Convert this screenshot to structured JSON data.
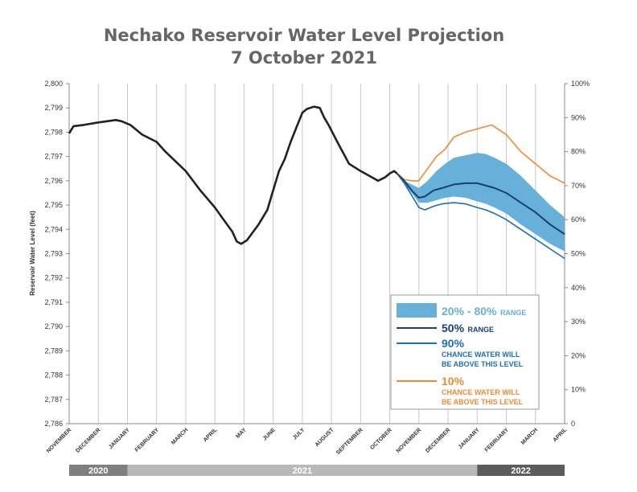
{
  "colors": {
    "history": "#222222",
    "p50": "#1d3f6e",
    "p90": "#1c6fb5",
    "p10": "#ec8b32",
    "band": "#66b0d9",
    "grid": "#c8c8c8",
    "title": "#666666",
    "year_dark": "#7f7f7f",
    "year_light": "#b9b9b9",
    "year_2022": "#5c5c5c"
  },
  "chart_data": {
    "type": "line",
    "title_line1": "Nechako Reservoir Water Level Projection",
    "title_line2": "7 October 2021",
    "ylabel": "Reservoir Water Level (feet)",
    "ylim": [
      2786,
      2800
    ],
    "y_ticks": [
      "2,786",
      "2,787",
      "2,788",
      "2,789",
      "2,790",
      "2,791",
      "2,792",
      "2,793",
      "2,794",
      "2,795",
      "2,796",
      "2,797",
      "2,798",
      "2,799",
      "2,800"
    ],
    "y2_ticks": [
      "0",
      "10%",
      "20%",
      "30%",
      "40%",
      "50%",
      "60%",
      "70%",
      "80%",
      "90%",
      "100%"
    ],
    "x_months": [
      "NOVEMBER",
      "DECEMBER",
      "JANUARY",
      "FEBRUARY",
      "MARCH",
      "APRIL",
      "MAY",
      "JUNE",
      "JULY",
      "AUGUST",
      "SEPTEMBER",
      "OCTOBER",
      "NOVEMBER",
      "DECEMBER",
      "JANUARY",
      "FEBRUARY",
      "MARCH",
      "APRIL"
    ],
    "years": [
      {
        "label": "2020",
        "from": 0,
        "to": 2,
        "shade": "year_dark"
      },
      {
        "label": "2021",
        "from": 2,
        "to": 14,
        "shade": "year_light"
      },
      {
        "label": "2022",
        "from": 14,
        "to": 17,
        "shade": "year_2022"
      }
    ],
    "x_unit": "months since November 2020",
    "history": {
      "x": [
        0.0,
        0.15,
        0.5,
        1.0,
        1.3,
        1.6,
        1.8,
        2.1,
        2.5,
        3.0,
        3.3,
        4.0,
        4.5,
        5.0,
        5.3,
        5.6,
        5.75,
        5.9,
        6.1,
        6.5,
        6.8,
        7.0,
        7.2,
        7.4,
        7.6,
        7.8,
        8.0,
        8.15,
        8.4,
        8.6,
        8.75,
        8.9,
        9.2,
        9.6,
        10.0,
        10.3,
        10.6,
        10.85,
        11.0,
        11.15,
        11.25
      ],
      "y": [
        2797.95,
        2798.25,
        2798.3,
        2798.4,
        2798.45,
        2798.5,
        2798.45,
        2798.3,
        2797.9,
        2797.6,
        2797.2,
        2796.4,
        2795.6,
        2794.9,
        2794.4,
        2793.9,
        2793.5,
        2793.4,
        2793.55,
        2794.2,
        2794.8,
        2795.6,
        2796.4,
        2796.9,
        2797.6,
        2798.2,
        2798.8,
        2798.95,
        2799.05,
        2799.0,
        2798.6,
        2798.3,
        2797.6,
        2796.7,
        2796.4,
        2796.2,
        2796.0,
        2796.15,
        2796.3,
        2796.4,
        2796.3
      ]
    },
    "p50": {
      "x": [
        11.25,
        11.5,
        11.75,
        12.0,
        12.2,
        12.5,
        12.8,
        13.2,
        13.6,
        14.0,
        14.3,
        14.6,
        15.0,
        15.5,
        16.0,
        16.5,
        17.0
      ],
      "y": [
        2796.3,
        2796.0,
        2795.6,
        2795.3,
        2795.35,
        2795.6,
        2795.7,
        2795.85,
        2795.9,
        2795.9,
        2795.8,
        2795.7,
        2795.5,
        2795.1,
        2794.7,
        2794.2,
        2793.8
      ]
    },
    "p90": {
      "x": [
        11.25,
        11.5,
        11.75,
        12.0,
        12.2,
        12.5,
        12.8,
        13.2,
        13.6,
        14.0,
        14.3,
        14.6,
        15.0,
        15.5,
        16.0,
        16.5,
        17.0
      ],
      "y": [
        2796.3,
        2795.9,
        2795.4,
        2794.9,
        2794.8,
        2794.95,
        2795.05,
        2795.1,
        2795.05,
        2794.9,
        2794.8,
        2794.65,
        2794.4,
        2794.0,
        2793.6,
        2793.2,
        2792.8
      ]
    },
    "p10": {
      "x": [
        11.25,
        11.5,
        11.75,
        12.0,
        12.3,
        12.6,
        12.9,
        13.2,
        13.6,
        13.9,
        14.2,
        14.5,
        15.0,
        15.5,
        16.0,
        16.5,
        17.0
      ],
      "y": [
        2796.3,
        2796.05,
        2796.0,
        2796.0,
        2796.5,
        2797.0,
        2797.3,
        2797.8,
        2798.0,
        2798.1,
        2798.2,
        2798.3,
        2797.9,
        2797.2,
        2796.7,
        2796.2,
        2795.9
      ]
    },
    "band_upper": {
      "x": [
        11.25,
        11.5,
        11.75,
        12.0,
        12.3,
        12.6,
        12.9,
        13.2,
        13.6,
        14.0,
        14.3,
        14.6,
        15.0,
        15.5,
        16.0,
        16.5,
        17.0
      ],
      "y": [
        2796.3,
        2796.0,
        2795.85,
        2795.7,
        2796.0,
        2796.4,
        2796.7,
        2796.95,
        2797.05,
        2797.15,
        2797.1,
        2796.95,
        2796.7,
        2796.2,
        2795.6,
        2795.0,
        2794.5
      ]
    },
    "band_lower": {
      "x": [
        11.25,
        11.5,
        11.75,
        12.0,
        12.3,
        12.6,
        12.9,
        13.2,
        13.6,
        14.0,
        14.3,
        14.6,
        15.0,
        15.5,
        16.0,
        16.5,
        17.0
      ],
      "y": [
        2796.3,
        2795.9,
        2795.5,
        2795.1,
        2795.1,
        2795.2,
        2795.3,
        2795.35,
        2795.3,
        2795.15,
        2795.05,
        2794.9,
        2794.65,
        2794.2,
        2793.8,
        2793.4,
        2793.1
      ]
    }
  },
  "legend": {
    "band_label": "20% - 80%",
    "band_suffix": "RANGE",
    "p50_label": "50%",
    "p50_suffix": "RANGE",
    "p90_label": "90%",
    "p90_line1": "CHANCE WATER WILL",
    "p90_line2": "BE ABOVE THIS LEVEL",
    "p10_label": "10%",
    "p10_line1": "CHANCE WATER WILL",
    "p10_line2": "BE ABOVE THIS LEVEL"
  }
}
